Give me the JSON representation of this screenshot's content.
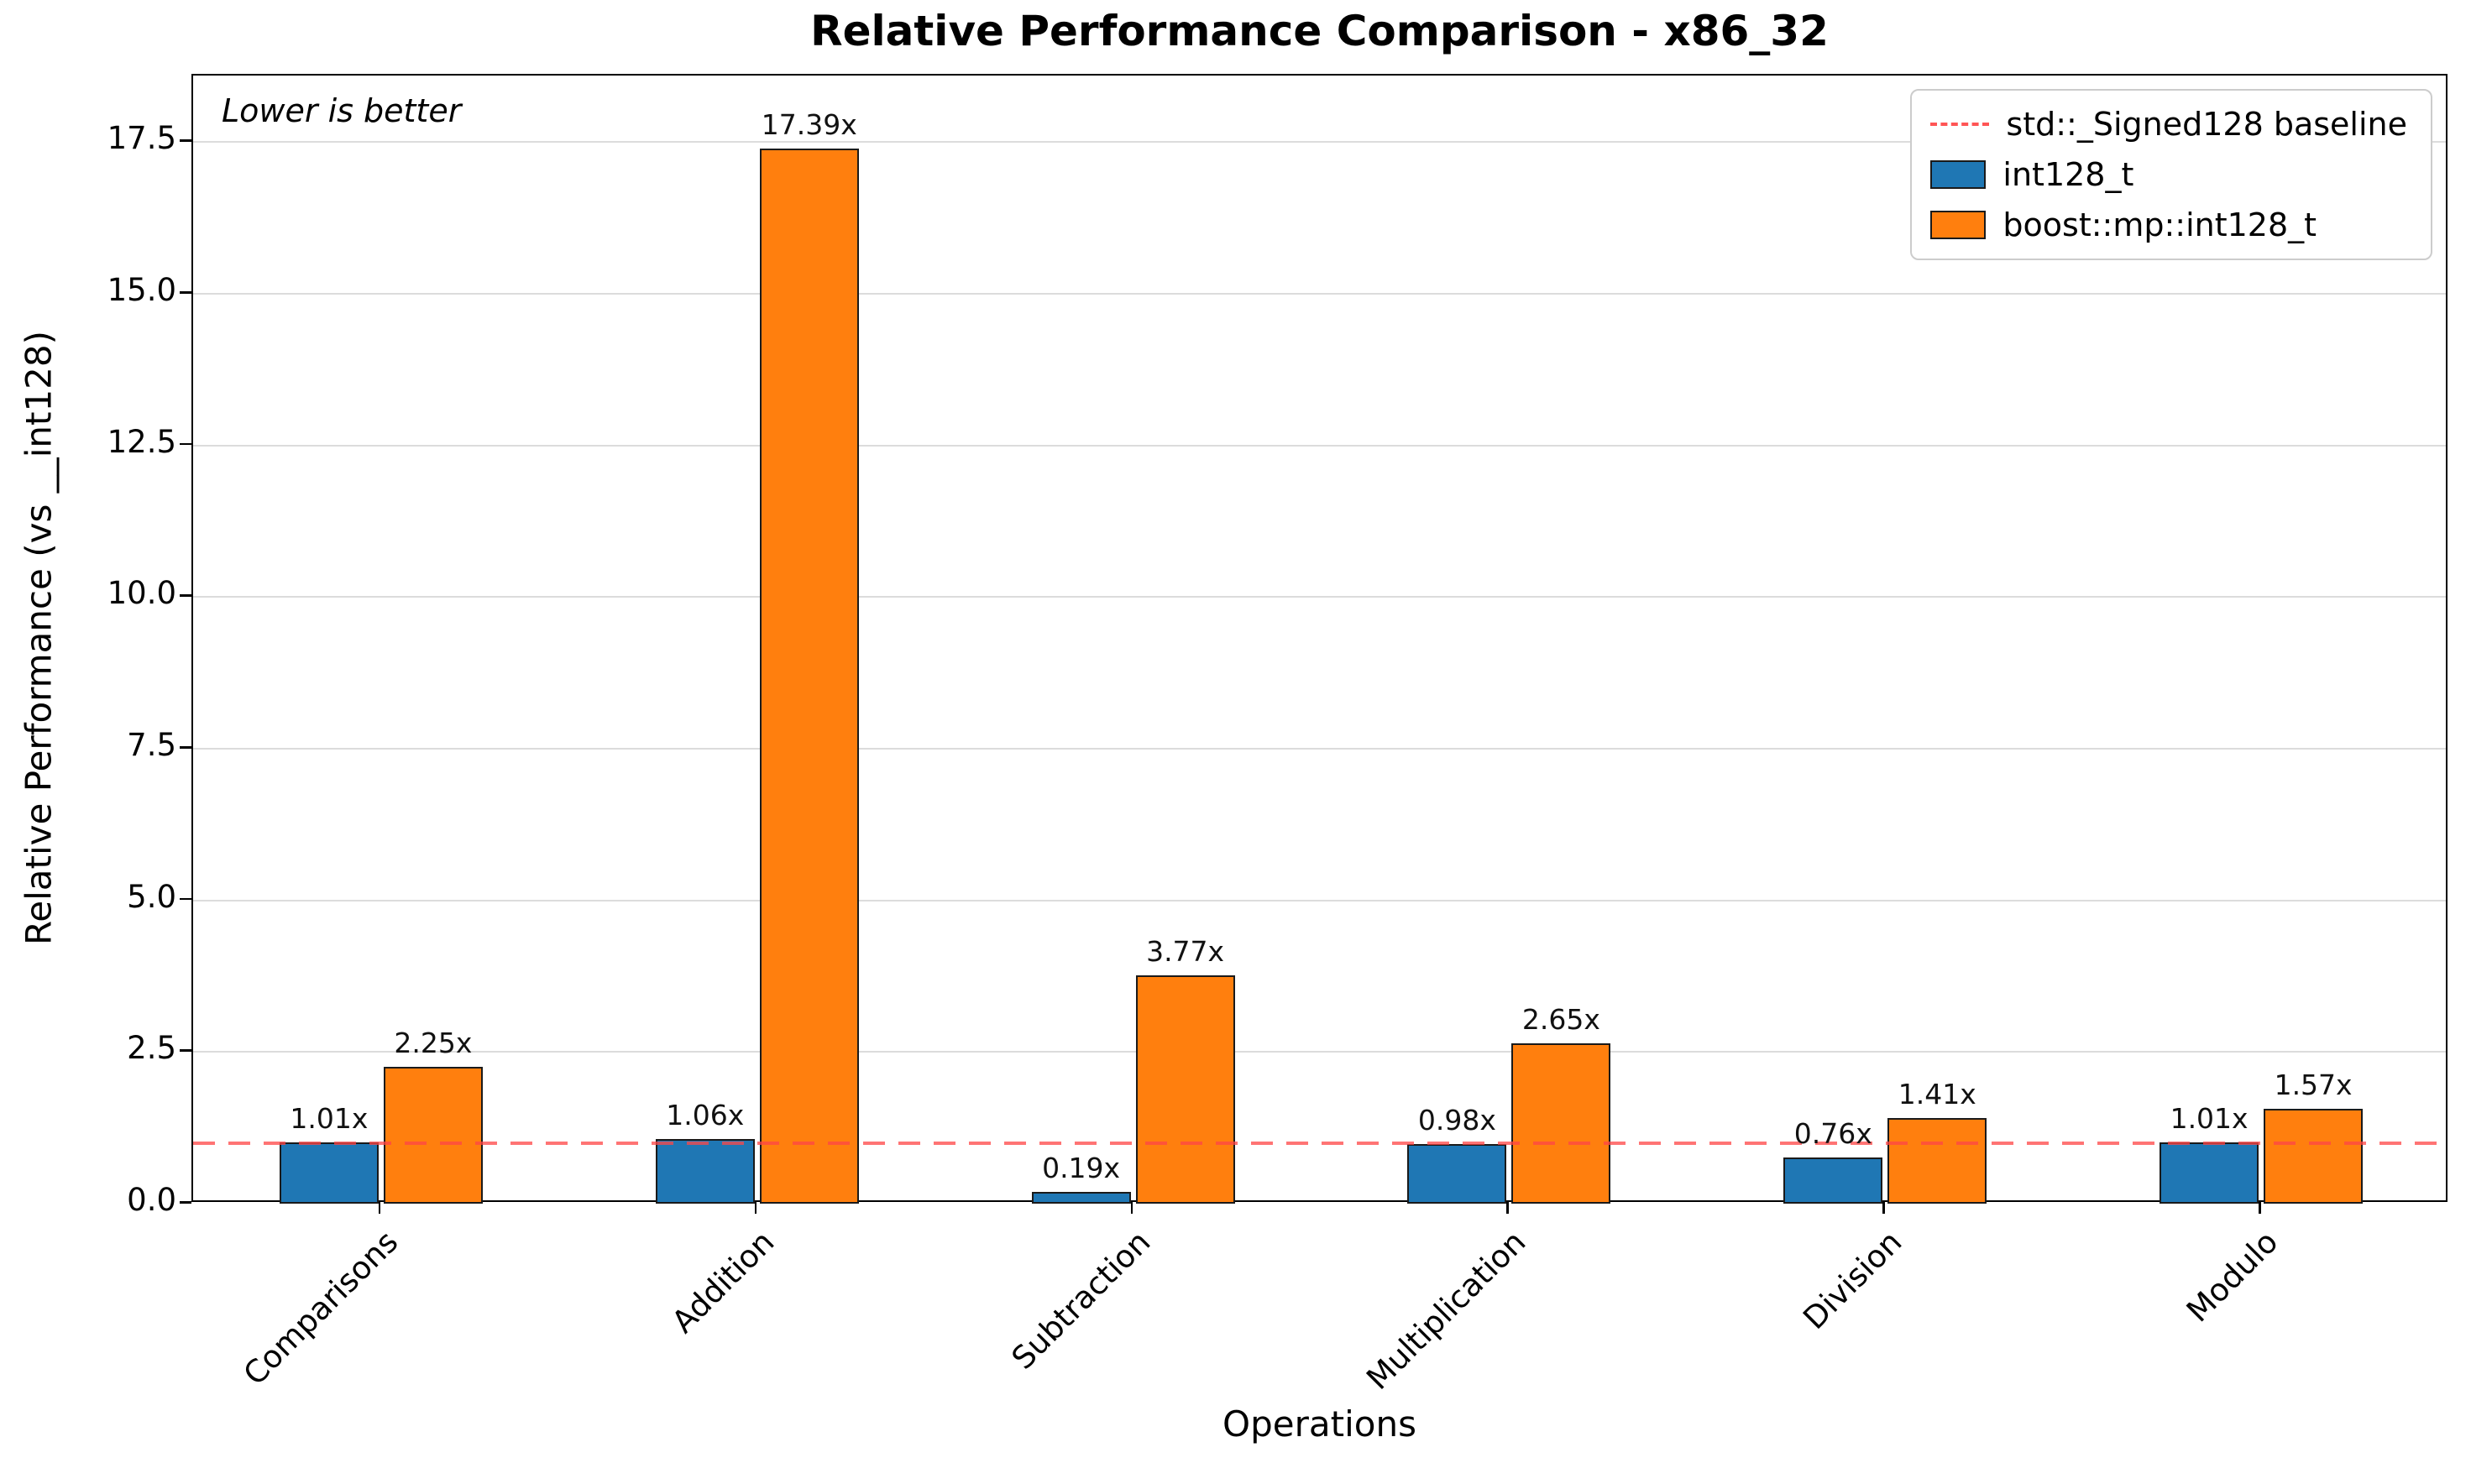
{
  "title": "Relative Performance Comparison - x86_32",
  "annotation": "Lower is better",
  "chart_data": {
    "type": "bar",
    "title": "Relative Performance Comparison - x86_32",
    "xlabel": "Operations",
    "ylabel": "Relative Performance (vs __int128)",
    "categories": [
      "Comparisons",
      "Addition",
      "Subtraction",
      "Multiplication",
      "Division",
      "Modulo"
    ],
    "series": [
      {
        "name": "int128_t",
        "color": "#1f77b4",
        "values": [
          1.01,
          1.06,
          0.19,
          0.98,
          0.76,
          1.01
        ],
        "value_labels": [
          "1.01x",
          "1.06x",
          "0.19x",
          "0.98x",
          "0.76x",
          "1.01x"
        ]
      },
      {
        "name": "boost::mp::int128_t",
        "color": "#ff7f0e",
        "values": [
          2.25,
          17.39,
          3.77,
          2.65,
          1.41,
          1.57
        ],
        "value_labels": [
          "2.25x",
          "17.39x",
          "3.77x",
          "2.65x",
          "1.41x",
          "1.57x"
        ]
      }
    ],
    "baseline": {
      "label": "std::_Signed128 baseline",
      "value": 1.0,
      "color": "#ff5555"
    },
    "ylim": [
      0,
      18.6
    ],
    "yticks": [
      0.0,
      2.5,
      5.0,
      7.5,
      10.0,
      12.5,
      15.0,
      17.5
    ],
    "ytick_labels": [
      "0.0",
      "2.5",
      "5.0",
      "7.5",
      "10.0",
      "12.5",
      "15.0",
      "17.5"
    ],
    "grid": true,
    "legend_position": "upper right"
  }
}
